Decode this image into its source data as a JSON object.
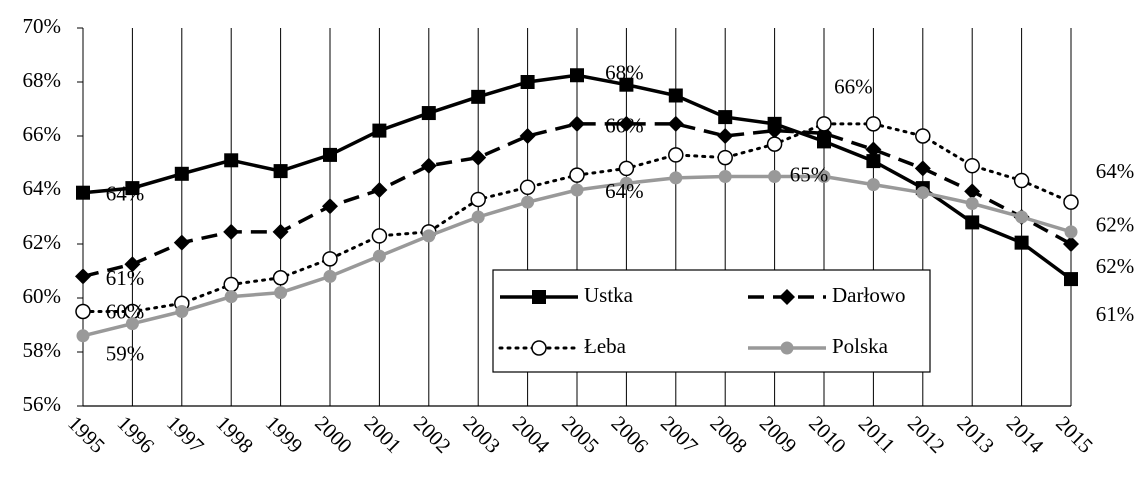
{
  "chart_data": {
    "type": "line",
    "categories": [
      "1995",
      "1996",
      "1997",
      "1998",
      "1999",
      "2000",
      "2001",
      "2002",
      "2003",
      "2004",
      "2005",
      "2006",
      "2007",
      "2008",
      "2009",
      "2010",
      "2011",
      "2012",
      "2013",
      "2014",
      "2015"
    ],
    "ylim": [
      56,
      70
    ],
    "yticks": [
      {
        "value": 56,
        "label": "56%"
      },
      {
        "value": 58,
        "label": "58%"
      },
      {
        "value": 60,
        "label": "60%"
      },
      {
        "value": 62,
        "label": "62%"
      },
      {
        "value": 64,
        "label": "64%"
      },
      {
        "value": 66,
        "label": "66%"
      },
      {
        "value": 68,
        "label": "68%"
      },
      {
        "value": 70,
        "label": "70%"
      }
    ],
    "grid": "x",
    "legend": "inside-bottom-right",
    "series": [
      {
        "name": "Ustka",
        "color": "#000000",
        "style": "solid",
        "marker": "square",
        "values": [
          63.9,
          64.07,
          64.6,
          65.1,
          64.7,
          65.3,
          66.2,
          66.85,
          67.45,
          68.0,
          68.25,
          67.9,
          67.5,
          66.7,
          66.45,
          65.8,
          65.07,
          64.07,
          62.8,
          62.05,
          60.7
        ],
        "value_labels": [
          "64%",
          null,
          null,
          null,
          null,
          null,
          null,
          null,
          null,
          null,
          null,
          "68%",
          null,
          null,
          null,
          null,
          null,
          null,
          null,
          null,
          "61%"
        ]
      },
      {
        "name": "Darłowo",
        "color": "#000000",
        "style": "dashed",
        "marker": "diamond",
        "values": [
          60.8,
          61.25,
          62.05,
          62.45,
          62.45,
          63.4,
          64.0,
          64.9,
          65.2,
          66.0,
          66.45,
          66.45,
          66.45,
          66.0,
          66.2,
          66.1,
          65.5,
          64.8,
          63.95,
          63.0,
          62.0
        ],
        "value_labels": [
          "61%",
          null,
          null,
          null,
          null,
          null,
          null,
          null,
          null,
          null,
          null,
          "66%",
          null,
          null,
          null,
          null,
          null,
          null,
          null,
          null,
          "62%"
        ]
      },
      {
        "name": "Łeba",
        "color": "#000000",
        "style": "dotted",
        "marker": "open-circle",
        "values": [
          59.5,
          59.5,
          59.8,
          60.5,
          60.75,
          61.45,
          62.3,
          62.45,
          63.65,
          64.1,
          64.55,
          64.8,
          65.3,
          65.2,
          65.7,
          66.45,
          66.45,
          66.0,
          64.9,
          64.35,
          63.55
        ],
        "value_labels": [
          "60%",
          null,
          null,
          null,
          null,
          null,
          null,
          null,
          null,
          null,
          null,
          null,
          null,
          null,
          null,
          null,
          "66%",
          null,
          null,
          null,
          "64%"
        ]
      },
      {
        "name": "Polska",
        "color": "#999999",
        "style": "solid",
        "marker": "circle",
        "values": [
          58.6,
          59.05,
          59.5,
          60.05,
          60.2,
          60.8,
          61.55,
          62.3,
          63.0,
          63.55,
          64.0,
          64.25,
          64.45,
          64.5,
          64.5,
          64.5,
          64.2,
          63.9,
          63.5,
          63.0,
          62.45
        ],
        "value_labels": [
          "59%",
          null,
          null,
          null,
          null,
          null,
          null,
          null,
          null,
          null,
          null,
          "64%",
          null,
          null,
          null,
          "65%",
          null,
          null,
          null,
          null,
          "62%"
        ]
      }
    ]
  }
}
